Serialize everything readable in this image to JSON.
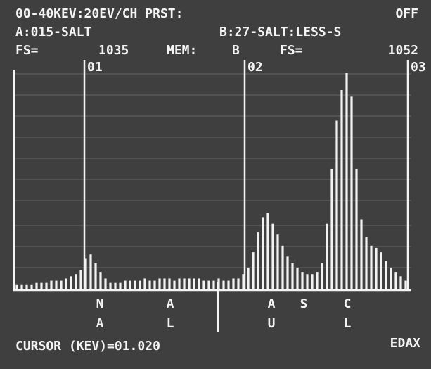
{
  "screen": {
    "header": {
      "range": "00-40KEV:20EV/CH PRST:",
      "preset": "OFF",
      "memory_a": "A:015-SALT",
      "memory_b": "B:27-SALT:LESS-S",
      "fs_a_label": "FS=",
      "fs_a": "1035",
      "mem_label": "MEM:",
      "mem": "B",
      "fs_b_label": "FS=",
      "fs_b": "1052"
    },
    "markers": [
      "01",
      "02",
      "03"
    ],
    "element_labels": [
      [
        "N",
        "A"
      ],
      [
        "A",
        "L"
      ],
      [
        "A",
        "U"
      ],
      [
        "S"
      ],
      [
        "C",
        "L"
      ]
    ],
    "cursor": "CURSOR (KEV)=01.020",
    "brand": "EDAX"
  },
  "chart_data": {
    "type": "bar",
    "color": "#f2f2f2",
    "ylim": [
      0,
      100
    ],
    "values": [
      2,
      2,
      2,
      2,
      3,
      3,
      3,
      4,
      4,
      4,
      5,
      6,
      7,
      9,
      14,
      16,
      12,
      8,
      5,
      3,
      3,
      3,
      4,
      4,
      4,
      4,
      5,
      4,
      4,
      5,
      5,
      5,
      4,
      5,
      5,
      5,
      5,
      5,
      4,
      4,
      4,
      5,
      4,
      4,
      5,
      5,
      7,
      10,
      17,
      26,
      33,
      35,
      30,
      25,
      20,
      15,
      12,
      10,
      8,
      7,
      7,
      8,
      12,
      30,
      55,
      77,
      91,
      99,
      88,
      55,
      32,
      24,
      20,
      19,
      17,
      13,
      10,
      8,
      6,
      4
    ]
  }
}
